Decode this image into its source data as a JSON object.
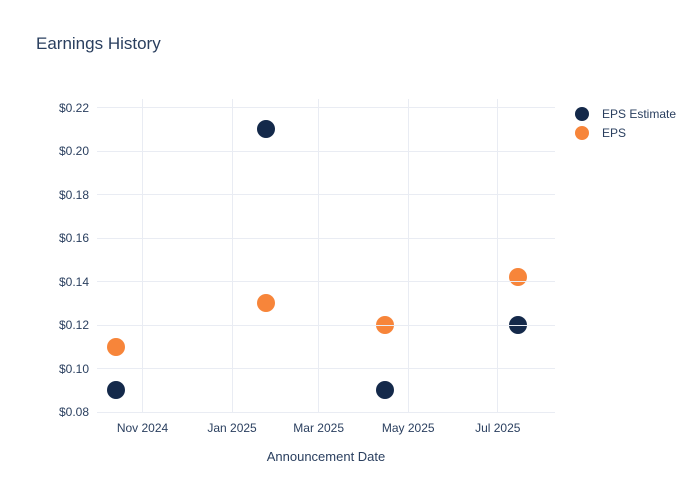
{
  "title": "Earnings History",
  "chart_data": {
    "type": "scatter",
    "title": "Earnings History",
    "xlabel": "Announcement Date",
    "ylabel": "",
    "x": [
      "2024-10-14",
      "2025-01-24",
      "2025-04-15",
      "2025-07-15"
    ],
    "series": [
      {
        "name": "EPS Estimate",
        "color": "#14294a",
        "values": [
          0.09,
          0.21,
          0.09,
          0.12
        ]
      },
      {
        "name": "EPS",
        "color": "#f7853a",
        "values": [
          0.11,
          0.13,
          0.12,
          0.142
        ]
      }
    ],
    "x_ticks": [
      {
        "value": "2024-11-01",
        "label": "Nov 2024"
      },
      {
        "value": "2025-01-01",
        "label": "Jan 2025"
      },
      {
        "value": "2025-03-01",
        "label": "Mar 2025"
      },
      {
        "value": "2025-05-01",
        "label": "May 2025"
      },
      {
        "value": "2025-07-01",
        "label": "Jul 2025"
      }
    ],
    "y_ticks": [
      {
        "value": 0.08,
        "label": "$0.08"
      },
      {
        "value": 0.1,
        "label": "$0.10"
      },
      {
        "value": 0.12,
        "label": "$0.12"
      },
      {
        "value": 0.14,
        "label": "$0.14"
      },
      {
        "value": 0.16,
        "label": "$0.16"
      },
      {
        "value": 0.18,
        "label": "$0.18"
      },
      {
        "value": 0.2,
        "label": "$0.20"
      },
      {
        "value": 0.22,
        "label": "$0.22"
      }
    ],
    "xlim": [
      "2024-10-01",
      "2025-08-09"
    ],
    "ylim": [
      0.08,
      0.224
    ],
    "grid": true,
    "legend_position": "right",
    "colors": {
      "background": "#ffffff",
      "grid": "#e9ecf3",
      "text": "#2a3f5f"
    }
  }
}
